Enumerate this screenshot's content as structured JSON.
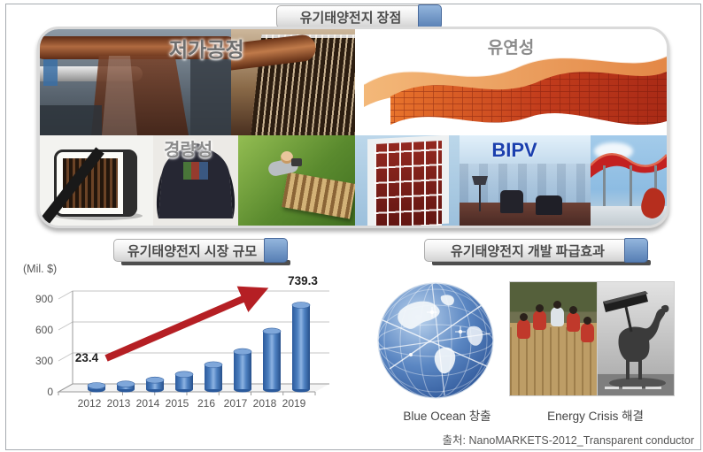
{
  "banners": {
    "advantages_title": "유기태양전지 장점",
    "market_title": "유기태양전지 시장 규모",
    "effects_title": "유기태양전지 개발 파급효과"
  },
  "advantages_labels": {
    "low_cost": "저가공정",
    "flexibility": "유연성",
    "lightweight": "경량성",
    "bipv": "BIPV"
  },
  "effects_captions": {
    "blue_ocean": "Blue Ocean 창출",
    "energy_crisis": "Energy Crisis 해결"
  },
  "source_line": "출처: NanoMARKETS-2012_Transparent conductor",
  "chart_data": {
    "type": "bar",
    "title": "유기태양전지 시장 규모",
    "unit_label": "(Mil. $)",
    "categories": [
      "2012",
      "2013",
      "2014",
      "2015",
      "216",
      "2017",
      "2018",
      "2019"
    ],
    "values": [
      23.4,
      45,
      80,
      130,
      215,
      330,
      510,
      739.3
    ],
    "data_labels": {
      "first": "23.4",
      "last": "739.3"
    },
    "y_ticks": [
      0,
      300,
      600,
      900
    ],
    "ylim": [
      0,
      900
    ],
    "grid": true,
    "legend": "none",
    "bar_color": "#2b5a9c",
    "trend_arrow_color": "#b51f24"
  },
  "colors": {
    "banner_tab_blue": "#5780b5",
    "bipv_text_blue": "#1b3fae",
    "bar_blue": "#2b5a9c",
    "arrow_red": "#b51f24"
  }
}
